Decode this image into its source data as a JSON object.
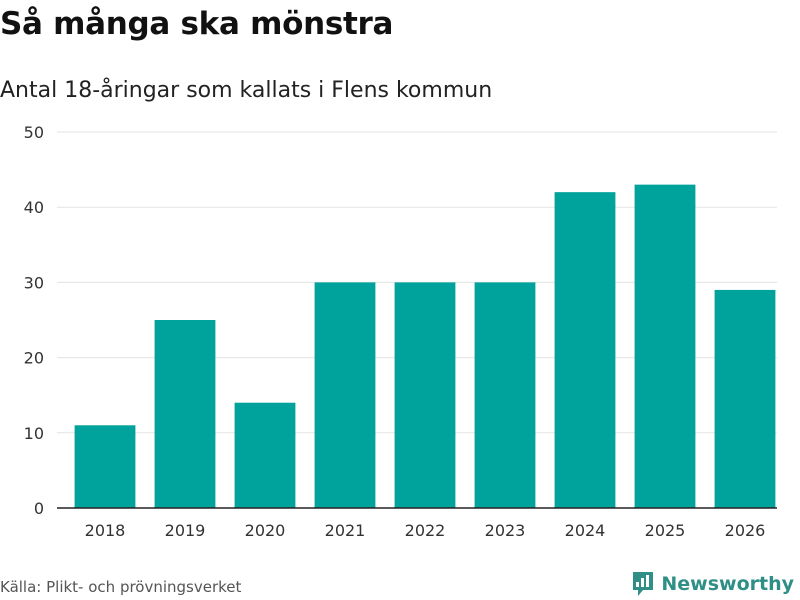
{
  "colors": {
    "bar": "#00a39b",
    "grid": "#e3e3e3",
    "axis": "#222222",
    "brand": "#2f8f86"
  },
  "header": {
    "title": "Så många ska mönstra",
    "subtitle": "Antal 18-åringar som kallats i Flens kommun"
  },
  "footer": {
    "source": "Källa: Plikt- och prövningsverket",
    "brand": "Newsworthy",
    "brand_icon": "newsworthy-logo-icon"
  },
  "chart_data": {
    "type": "bar",
    "title": "Så många ska mönstra",
    "subtitle": "Antal 18-åringar som kallats i Flens kommun",
    "categories": [
      "2018",
      "2019",
      "2020",
      "2021",
      "2022",
      "2023",
      "2024",
      "2025",
      "2026"
    ],
    "values": [
      11,
      25,
      14,
      30,
      30,
      30,
      42,
      43,
      29
    ],
    "xlabel": "",
    "ylabel": "",
    "ylim": [
      0,
      50
    ],
    "yticks": [
      "0",
      "10",
      "20",
      "30",
      "40",
      "50"
    ],
    "grid": true,
    "legend": "none"
  }
}
